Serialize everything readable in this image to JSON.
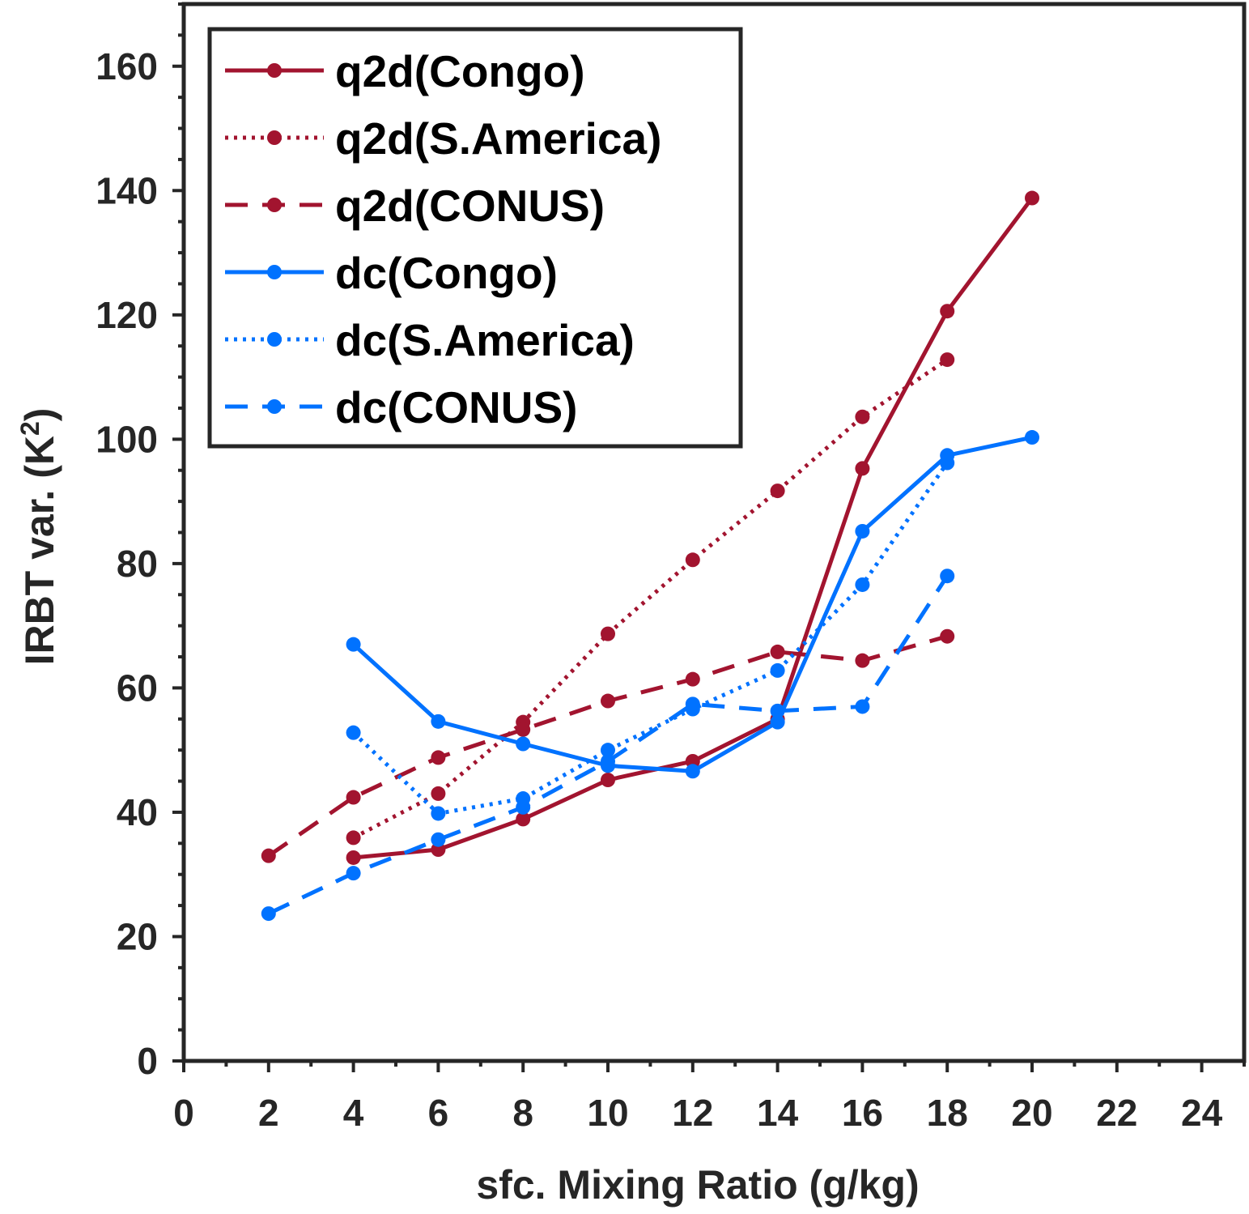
{
  "chart_data": {
    "type": "line",
    "xlabel": "sfc. Mixing Ratio (g/kg)",
    "ylabel": "IRBT var. (K",
    "ylabel_sup": "2",
    "ylabel_end": ")",
    "xlim": [
      0,
      25
    ],
    "ylim": [
      0,
      170
    ],
    "xticks": [
      "0",
      "2",
      "4",
      "6",
      "8",
      "10",
      "12",
      "14",
      "16",
      "18",
      "20",
      "22",
      "24"
    ],
    "yticks": [
      "0",
      "20",
      "40",
      "60",
      "80",
      "100",
      "120",
      "140",
      "160"
    ],
    "grid": false,
    "legend_position": "top-left",
    "series": [
      {
        "name": "q2d(Congo)",
        "color": "#A2142F",
        "dash": "solid",
        "x": [
          4,
          6,
          8,
          10,
          12,
          14,
          16,
          18,
          20
        ],
        "y": [
          32.7,
          34,
          38.9,
          45.2,
          48.2,
          55,
          95.3,
          120.6,
          138.8
        ]
      },
      {
        "name": "q2d(S.America)",
        "color": "#A2142F",
        "dash": "dotted",
        "x": [
          4,
          6,
          8,
          10,
          12,
          14,
          16,
          18
        ],
        "y": [
          35.9,
          43,
          54.5,
          68.7,
          80.6,
          91.7,
          103.6,
          112.8
        ]
      },
      {
        "name": "q2d(CONUS)",
        "color": "#A2142F",
        "dash": "dashed",
        "x": [
          2,
          4,
          6,
          8,
          10,
          12,
          14,
          16,
          18
        ],
        "y": [
          33,
          42.4,
          48.8,
          53.3,
          57.9,
          61.4,
          65.8,
          64.4,
          68.3
        ]
      },
      {
        "name": "dc(Congo)",
        "color": "#0072FF",
        "dash": "solid",
        "x": [
          4,
          6,
          8,
          10,
          12,
          14,
          16,
          18,
          20
        ],
        "y": [
          67,
          54.6,
          51,
          47.5,
          46.6,
          54.5,
          85.2,
          97.4,
          100.3
        ]
      },
      {
        "name": "dc(S.America)",
        "color": "#0072FF",
        "dash": "dotted",
        "x": [
          4,
          6,
          8,
          10,
          12,
          14,
          16,
          18
        ],
        "y": [
          52.8,
          39.8,
          42.2,
          50,
          56.6,
          62.8,
          76.6,
          96.2
        ]
      },
      {
        "name": "dc(CONUS)",
        "color": "#0072FF",
        "dash": "dashed",
        "x": [
          2,
          4,
          6,
          8,
          10,
          12,
          14,
          16,
          18
        ],
        "y": [
          23.7,
          30.2,
          35.6,
          40.8,
          48.2,
          57.4,
          56.3,
          57,
          78
        ]
      }
    ]
  }
}
